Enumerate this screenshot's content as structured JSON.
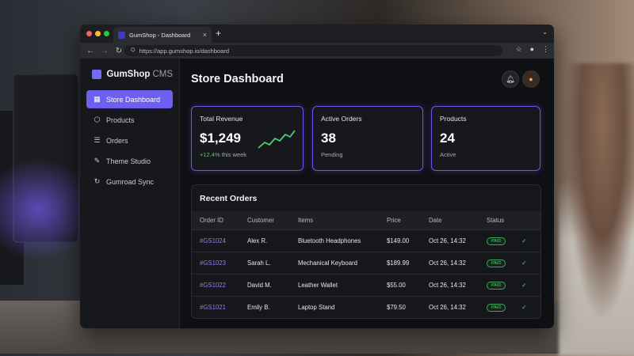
{
  "browser": {
    "tab_title": "GumShop - Dashboard",
    "new_tab": "+",
    "url": "https://app.gumshop.io/dashboard"
  },
  "sidebar": {
    "logo_brand": "GumShop",
    "logo_cms": "CMS",
    "items": [
      {
        "label": "Store Dashboard",
        "icon": "grid-icon"
      },
      {
        "label": "Products",
        "icon": "box-icon"
      },
      {
        "label": "Orders",
        "icon": "clipboard-icon"
      },
      {
        "label": "Theme Studio",
        "icon": "brush-icon"
      },
      {
        "label": "Gumroad Sync",
        "icon": "sync-icon"
      }
    ]
  },
  "header": {
    "title": "Store Dashboard"
  },
  "stats": {
    "revenue": {
      "label": "Total Revenue",
      "value": "$1,249",
      "change": "+12.4%",
      "change_suffix": "this week"
    },
    "orders": {
      "label": "Active Orders",
      "value": "38",
      "sub": "Pending"
    },
    "products": {
      "label": "Products",
      "value": "24",
      "sub": "Active"
    }
  },
  "recent_orders": {
    "title": "Recent Orders",
    "columns": [
      "Order ID",
      "Customer",
      "Items",
      "Price",
      "Date",
      "Status"
    ],
    "rows": [
      {
        "id": "#GS1024",
        "customer": "Alex R.",
        "item": "Bluetooth Headphones",
        "price": "$149.00",
        "date": "Oct 26, 14:32",
        "status": "PAID"
      },
      {
        "id": "#GS1023",
        "customer": "Sarah L.",
        "item": "Mechanical Keyboard",
        "price": "$189.99",
        "date": "Oct 26, 14:32",
        "status": "PAID"
      },
      {
        "id": "#GS1022",
        "customer": "David M.",
        "item": "Leather Wallet",
        "price": "$55.00",
        "date": "Oct 26, 14:32",
        "status": "PAID"
      },
      {
        "id": "#GS1021",
        "customer": "Emily B.",
        "item": "Laptop Stand",
        "price": "$79.50",
        "date": "Oct 26, 14:32",
        "status": "PAID"
      }
    ]
  },
  "colors": {
    "accent": "#6d5ff0",
    "success": "#4cd36a",
    "background": "#0f1014"
  }
}
